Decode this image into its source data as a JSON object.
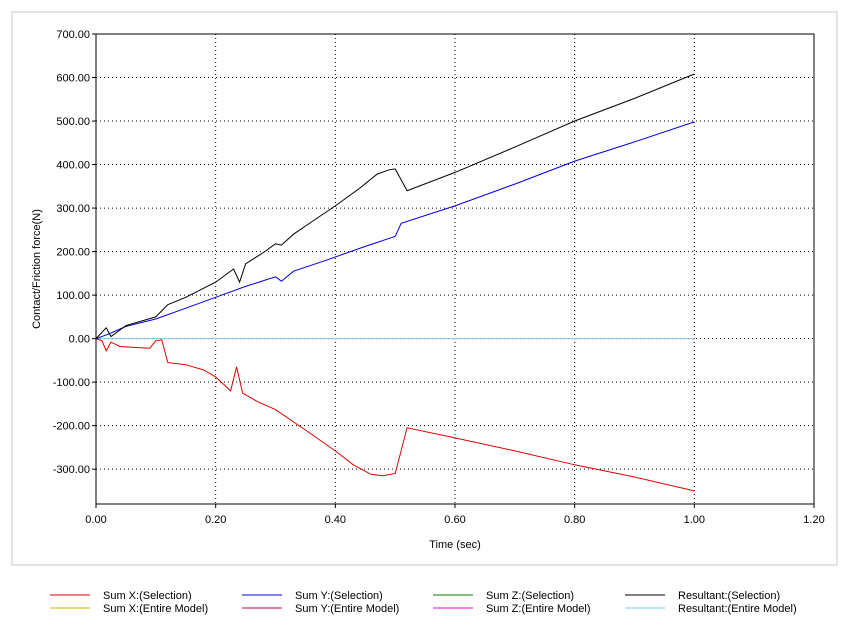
{
  "chart_data": {
    "type": "line",
    "xlabel": "Time (sec)",
    "ylabel": "Contact/Friction force(N)",
    "xlim": [
      0.0,
      1.2
    ],
    "ylim": [
      -380,
      700
    ],
    "x_ticks": [
      "0.00",
      "0.20",
      "0.40",
      "0.60",
      "0.80",
      "1.00",
      "1.20"
    ],
    "y_ticks": [
      "700.00",
      "600.00",
      "500.00",
      "400.00",
      "300.00",
      "200.00",
      "100.00",
      "0.00",
      "-100.00",
      "-200.00",
      "-300.00"
    ],
    "grid": true,
    "legend_position": "bottom",
    "series": [
      {
        "name": "Sum X:(Selection)",
        "color": "#e00000",
        "points": [
          [
            0.0,
            0
          ],
          [
            0.01,
            -5
          ],
          [
            0.017,
            -28
          ],
          [
            0.025,
            -8
          ],
          [
            0.04,
            -18
          ],
          [
            0.06,
            -20
          ],
          [
            0.09,
            -22
          ],
          [
            0.1,
            -5
          ],
          [
            0.11,
            -3
          ],
          [
            0.12,
            -55
          ],
          [
            0.15,
            -60
          ],
          [
            0.18,
            -72
          ],
          [
            0.2,
            -88
          ],
          [
            0.225,
            -120
          ],
          [
            0.235,
            -65
          ],
          [
            0.245,
            -125
          ],
          [
            0.27,
            -145
          ],
          [
            0.3,
            -163
          ],
          [
            0.35,
            -210
          ],
          [
            0.4,
            -258
          ],
          [
            0.43,
            -290
          ],
          [
            0.46,
            -312
          ],
          [
            0.48,
            -315
          ],
          [
            0.5,
            -310
          ],
          [
            0.52,
            -205
          ],
          [
            0.6,
            -228
          ],
          [
            0.7,
            -258
          ],
          [
            0.8,
            -290
          ],
          [
            0.9,
            -318
          ],
          [
            1.0,
            -350
          ]
        ]
      },
      {
        "name": "Sum X:(Entire Model)",
        "color": "#c8b400",
        "points": []
      },
      {
        "name": "Sum Y:(Selection)",
        "color": "#0000e0",
        "points": [
          [
            0.0,
            0
          ],
          [
            0.02,
            10
          ],
          [
            0.05,
            28
          ],
          [
            0.1,
            45
          ],
          [
            0.15,
            70
          ],
          [
            0.2,
            95
          ],
          [
            0.25,
            120
          ],
          [
            0.3,
            142
          ],
          [
            0.31,
            132
          ],
          [
            0.33,
            155
          ],
          [
            0.38,
            178
          ],
          [
            0.45,
            212
          ],
          [
            0.5,
            235
          ],
          [
            0.51,
            265
          ],
          [
            0.6,
            305
          ],
          [
            0.7,
            355
          ],
          [
            0.8,
            408
          ],
          [
            0.9,
            452
          ],
          [
            1.0,
            498
          ]
        ]
      },
      {
        "name": "Sum Y:(Entire Model)",
        "color": "#c00040",
        "points": []
      },
      {
        "name": "Sum Z:(Selection)",
        "color": "#008000",
        "points": []
      },
      {
        "name": "Sum Z:(Entire Model)",
        "color": "#e000e0",
        "points": []
      },
      {
        "name": "Resultant:(Selection)",
        "color": "#000000",
        "points": [
          [
            0.0,
            0
          ],
          [
            0.017,
            25
          ],
          [
            0.025,
            5
          ],
          [
            0.05,
            30
          ],
          [
            0.1,
            50
          ],
          [
            0.12,
            78
          ],
          [
            0.15,
            95
          ],
          [
            0.2,
            130
          ],
          [
            0.23,
            160
          ],
          [
            0.24,
            130
          ],
          [
            0.25,
            172
          ],
          [
            0.28,
            198
          ],
          [
            0.3,
            218
          ],
          [
            0.31,
            215
          ],
          [
            0.33,
            240
          ],
          [
            0.36,
            268
          ],
          [
            0.4,
            305
          ],
          [
            0.44,
            345
          ],
          [
            0.47,
            378
          ],
          [
            0.49,
            388
          ],
          [
            0.5,
            390
          ],
          [
            0.52,
            340
          ],
          [
            0.6,
            382
          ],
          [
            0.7,
            440
          ],
          [
            0.8,
            500
          ],
          [
            0.9,
            552
          ],
          [
            1.0,
            608
          ]
        ]
      },
      {
        "name": "Resultant:(Entire Model)",
        "color": "#80c8e8",
        "points": [
          [
            0.0,
            0
          ],
          [
            1.0,
            0
          ]
        ]
      }
    ]
  }
}
